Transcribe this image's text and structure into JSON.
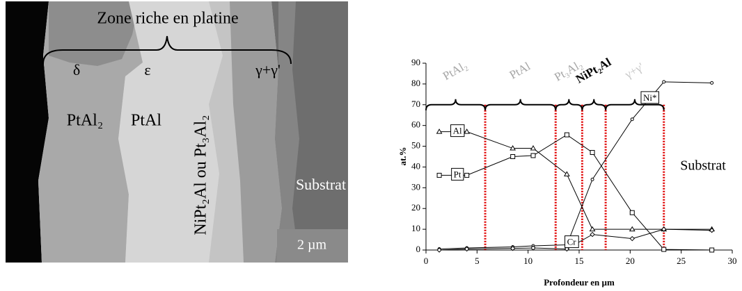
{
  "micrograph": {
    "title": "Zone riche en platine",
    "phases": [
      "δ",
      "ε",
      "γ+γ'"
    ],
    "layers": [
      "PtAl₂",
      "PtAl",
      "NiPt₂Al ou Pt₃Al₂"
    ],
    "substrate": "Substrat",
    "scale_bar": "2 µm"
  },
  "chart_data": {
    "type": "line",
    "xlabel": "Profondeur en µm",
    "ylabel": "at.%",
    "xlim": [
      0,
      30
    ],
    "xticks": [
      0,
      5,
      10,
      15,
      20,
      25,
      30
    ],
    "ylim": [
      0,
      90
    ],
    "yticks": [
      0,
      10,
      20,
      30,
      40,
      50,
      60,
      70,
      80,
      90
    ],
    "x": [
      1.3,
      4,
      8.5,
      10.5,
      13.8,
      16.3,
      20.2,
      23.3,
      28
    ],
    "series": [
      {
        "name": "Al",
        "color": "#000000",
        "marker": "triangle",
        "values": [
          57,
          57,
          49,
          49,
          36.5,
          10,
          10,
          10,
          10
        ]
      },
      {
        "name": "Pt",
        "color": "#000000",
        "marker": "square",
        "values": [
          36,
          36,
          45,
          45.5,
          55.5,
          47,
          18,
          0.3,
          0
        ]
      },
      {
        "name": "Ni*",
        "color": "#000000",
        "marker": "circle",
        "values": [
          0.5,
          1,
          1.5,
          2,
          2.5,
          34,
          63,
          81,
          80.5
        ]
      },
      {
        "name": "Cr",
        "color": "#000000",
        "marker": "diamond",
        "values": [
          0,
          0.5,
          0.8,
          1,
          0.5,
          7.5,
          5.5,
          10,
          9.5
        ]
      }
    ],
    "boundaries": [
      5.8,
      12.7,
      15.3,
      17.6,
      23.3
    ],
    "boundary_color": "#e00000",
    "phases": [
      {
        "name": "PtAl₂",
        "color": "#a6a6a6"
      },
      {
        "name": "PtAl",
        "color": "#a6a6a6"
      },
      {
        "name": "Pt₃Al₂",
        "color": "#a6a6a6"
      },
      {
        "name": "NiPt₂Al",
        "color": "#000000"
      },
      {
        "name": "γ+γ'",
        "color": "#c8c8c8"
      }
    ],
    "annotation": "Substrat"
  }
}
